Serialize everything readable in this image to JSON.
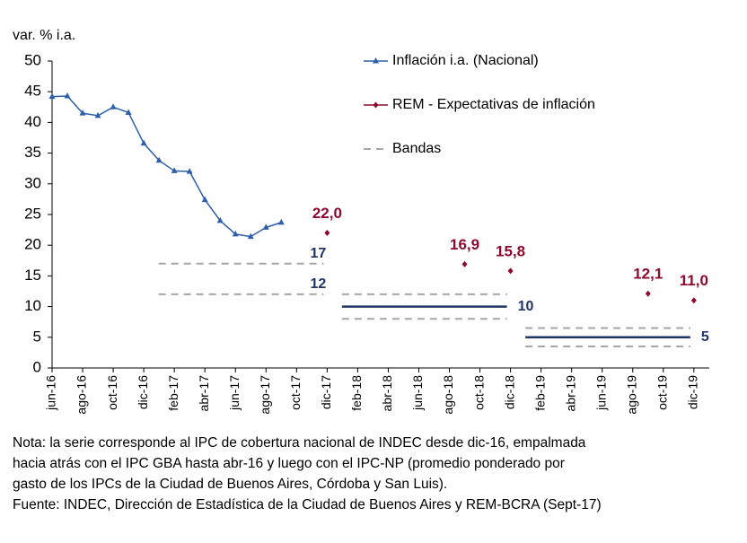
{
  "chart_data": {
    "type": "line",
    "y_label": "var. % i.a.",
    "categories": [
      "jun-16",
      null,
      "ago-16",
      null,
      "oct-16",
      null,
      "dic-16",
      null,
      "feb-17",
      null,
      "abr-17",
      null,
      "jun-17",
      null,
      "ago-17",
      null,
      "oct-17",
      null,
      "dic-17",
      null,
      "feb-18",
      null,
      "abr-18",
      null,
      "jun-18",
      null,
      "ago-18",
      null,
      "oct-18",
      null,
      "dic-18",
      null,
      "feb-19",
      null,
      "abr-19",
      null,
      "jun-19",
      null,
      "ago-19",
      null,
      "oct-19",
      null,
      "dic-19"
    ],
    "series": [
      {
        "name": "Inflación i.a. (Nacional)",
        "color": "#2e5fa8",
        "marker": "triangle",
        "values": [
          44.2,
          44.3,
          41.5,
          41.1,
          42.5,
          41.6,
          36.6,
          33.8,
          32.1,
          32.0,
          27.4,
          24.0,
          21.8,
          21.4,
          22.9,
          23.7,
          null,
          null,
          null,
          null,
          null,
          null,
          null,
          null,
          null,
          null,
          null,
          null,
          null,
          null,
          null,
          null,
          null,
          null,
          null,
          null,
          null,
          null,
          null,
          null,
          null,
          null,
          null
        ]
      },
      {
        "name": "REM - Expectativas de inflación",
        "color": "#8b0a2e",
        "marker": "diamond",
        "values": [
          null,
          null,
          null,
          null,
          null,
          null,
          null,
          null,
          null,
          null,
          null,
          null,
          null,
          null,
          null,
          null,
          null,
          null,
          22.0,
          null,
          null,
          null,
          null,
          null,
          null,
          null,
          null,
          16.9,
          null,
          null,
          15.8,
          null,
          null,
          null,
          null,
          null,
          null,
          null,
          null,
          12.1,
          null,
          null,
          11.0
        ],
        "value_labels": [
          null,
          null,
          null,
          null,
          null,
          null,
          null,
          null,
          null,
          null,
          null,
          null,
          null,
          null,
          null,
          null,
          null,
          null,
          "22,0",
          null,
          null,
          null,
          null,
          null,
          null,
          null,
          null,
          "16,9",
          null,
          null,
          "15,8",
          null,
          null,
          null,
          null,
          null,
          null,
          null,
          null,
          "12,1",
          null,
          null,
          "11,0"
        ]
      }
    ],
    "bands_name": "Bandas",
    "bands_color": "#a6a6a6",
    "center_color": "#1f3566",
    "bands": [
      {
        "from": 7,
        "to": 18,
        "dashed": [
          17,
          12
        ]
      },
      {
        "from": 19,
        "to": 30,
        "dashed": [
          12,
          8
        ],
        "center": 10
      },
      {
        "from": 31,
        "to": 42,
        "dashed": [
          6.5,
          3.5
        ],
        "center": 5
      }
    ],
    "ylim": [
      0,
      50
    ],
    "yticks": [
      0,
      5,
      10,
      15,
      20,
      25,
      30,
      35,
      40,
      45,
      50
    ],
    "notes": [
      "Nota: la serie corresponde al IPC de cobertura nacional de INDEC desde dic-16, empalmada",
      "hacia atrás con el IPC GBA hasta abr-16 y luego con el IPC-NP (promedio ponderado por",
      "gasto de los IPCs de la Ciudad de Buenos Aires, Córdoba y San Luis).",
      "Fuente: INDEC, Dirección de Estadística de la Ciudad de Buenos Aires y REM-BCRA (Sept-17)"
    ]
  }
}
